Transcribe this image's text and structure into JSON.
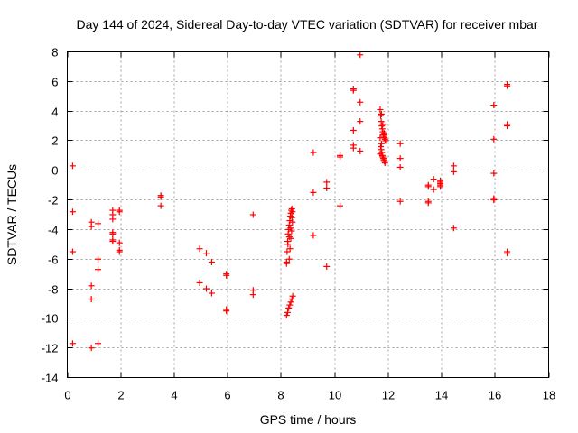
{
  "chart_data": {
    "type": "scatter",
    "title": "Day 144 of 2024, Sidereal Day-to-day VTEC variation (SDTVAR) for receiver mbar",
    "xlabel": "GPS time / hours",
    "ylabel": "SDTVAR / TECUs",
    "xlim": [
      0,
      18
    ],
    "ylim": [
      -14,
      8
    ],
    "xticks": [
      0,
      2,
      4,
      6,
      8,
      10,
      12,
      14,
      16,
      18
    ],
    "yticks": [
      -14,
      -12,
      -10,
      -8,
      -6,
      -4,
      -2,
      0,
      2,
      4,
      6,
      8
    ],
    "grid": true,
    "marker": "+",
    "color": "#ff0000",
    "series": [
      {
        "name": "SDTVAR",
        "points": [
          [
            0.2,
            0.3
          ],
          [
            0.2,
            -2.8
          ],
          [
            0.2,
            -5.5
          ],
          [
            0.2,
            -11.7
          ],
          [
            0.9,
            -3.5
          ],
          [
            0.9,
            -3.8
          ],
          [
            0.9,
            -7.8
          ],
          [
            0.9,
            -8.7
          ],
          [
            0.9,
            -12.0
          ],
          [
            1.15,
            -3.6
          ],
          [
            1.15,
            -6.0
          ],
          [
            1.15,
            -6.7
          ],
          [
            1.15,
            -11.7
          ],
          [
            1.7,
            -2.7
          ],
          [
            1.7,
            -3.0
          ],
          [
            1.7,
            -3.3
          ],
          [
            1.7,
            -4.2
          ],
          [
            1.7,
            -4.3
          ],
          [
            1.7,
            -4.7
          ],
          [
            1.7,
            -4.8
          ],
          [
            1.95,
            -2.7
          ],
          [
            1.95,
            -2.8
          ],
          [
            1.95,
            -4.9
          ],
          [
            1.95,
            -5.4
          ],
          [
            1.95,
            -5.5
          ],
          [
            3.5,
            -1.7
          ],
          [
            3.5,
            -1.8
          ],
          [
            3.5,
            -2.4
          ],
          [
            4.95,
            -5.3
          ],
          [
            4.95,
            -7.6
          ],
          [
            5.2,
            -5.6
          ],
          [
            5.2,
            -8.0
          ],
          [
            5.4,
            -6.2
          ],
          [
            5.4,
            -8.3
          ],
          [
            5.95,
            -7.0
          ],
          [
            5.95,
            -7.1
          ],
          [
            5.95,
            -9.4
          ],
          [
            5.95,
            -9.5
          ],
          [
            6.95,
            -3.0
          ],
          [
            6.95,
            -8.1
          ],
          [
            6.95,
            -8.4
          ],
          [
            8.2,
            -6.2
          ],
          [
            8.22,
            -5.5
          ],
          [
            8.24,
            -4.8
          ],
          [
            8.26,
            -4.3
          ],
          [
            8.28,
            -4.0
          ],
          [
            8.3,
            -3.7
          ],
          [
            8.32,
            -3.4
          ],
          [
            8.34,
            -3.1
          ],
          [
            8.36,
            -2.9
          ],
          [
            8.38,
            -2.7
          ],
          [
            8.4,
            -2.6
          ],
          [
            8.2,
            -6.3
          ],
          [
            8.25,
            -5.0
          ],
          [
            8.3,
            -4.5
          ],
          [
            8.35,
            -3.9
          ],
          [
            8.4,
            -3.2
          ],
          [
            8.42,
            -2.8
          ],
          [
            8.3,
            -6.0
          ],
          [
            8.33,
            -5.3
          ],
          [
            8.36,
            -4.6
          ],
          [
            8.39,
            -4.1
          ],
          [
            8.42,
            -3.5
          ],
          [
            8.2,
            -9.8
          ],
          [
            8.24,
            -9.6
          ],
          [
            8.28,
            -9.3
          ],
          [
            8.32,
            -9.1
          ],
          [
            8.36,
            -8.9
          ],
          [
            8.4,
            -8.7
          ],
          [
            8.43,
            -8.5
          ],
          [
            9.2,
            1.2
          ],
          [
            9.2,
            -1.5
          ],
          [
            9.2,
            -4.4
          ],
          [
            9.7,
            -0.8
          ],
          [
            9.7,
            -1.2
          ],
          [
            9.7,
            -6.5
          ],
          [
            10.2,
            0.9
          ],
          [
            10.2,
            1.0
          ],
          [
            10.2,
            -2.4
          ],
          [
            10.7,
            5.4
          ],
          [
            10.7,
            5.5
          ],
          [
            10.7,
            2.7
          ],
          [
            10.7,
            1.7
          ],
          [
            10.7,
            1.5
          ],
          [
            10.95,
            7.8
          ],
          [
            10.95,
            4.6
          ],
          [
            10.95,
            3.3
          ],
          [
            10.95,
            1.3
          ],
          [
            11.7,
            4.1
          ],
          [
            11.72,
            3.7
          ],
          [
            11.74,
            3.3
          ],
          [
            11.76,
            3.0
          ],
          [
            11.78,
            2.8
          ],
          [
            11.8,
            2.6
          ],
          [
            11.82,
            2.4
          ],
          [
            11.84,
            2.3
          ],
          [
            11.86,
            2.2
          ],
          [
            11.88,
            2.1
          ],
          [
            11.7,
            2.2
          ],
          [
            11.72,
            1.6
          ],
          [
            11.74,
            1.4
          ],
          [
            11.76,
            1.2
          ],
          [
            11.78,
            1.0
          ],
          [
            11.8,
            0.9
          ],
          [
            11.82,
            0.8
          ],
          [
            11.84,
            0.7
          ],
          [
            11.86,
            0.6
          ],
          [
            11.88,
            0.5
          ],
          [
            11.75,
            3.8
          ],
          [
            11.8,
            3.1
          ],
          [
            11.85,
            2.5
          ],
          [
            11.9,
            2.0
          ],
          [
            11.7,
            1.1
          ],
          [
            11.75,
            1.8
          ],
          [
            12.45,
            1.8
          ],
          [
            12.45,
            0.8
          ],
          [
            12.45,
            0.2
          ],
          [
            12.45,
            -2.1
          ],
          [
            13.5,
            -1.0
          ],
          [
            13.5,
            -1.1
          ],
          [
            13.5,
            -2.1
          ],
          [
            13.5,
            -2.2
          ],
          [
            13.7,
            -0.6
          ],
          [
            13.7,
            -1.3
          ],
          [
            13.95,
            -0.7
          ],
          [
            13.95,
            -0.8
          ],
          [
            13.95,
            -0.9
          ],
          [
            13.95,
            -1.0
          ],
          [
            13.95,
            -1.1
          ],
          [
            14.45,
            0.3
          ],
          [
            14.45,
            -0.1
          ],
          [
            14.45,
            -3.9
          ],
          [
            15.95,
            4.4
          ],
          [
            15.95,
            2.1
          ],
          [
            15.95,
            -0.2
          ],
          [
            15.95,
            -1.9
          ],
          [
            15.95,
            -2.0
          ],
          [
            16.45,
            5.7
          ],
          [
            16.45,
            5.8
          ],
          [
            16.45,
            3.0
          ],
          [
            16.45,
            3.1
          ],
          [
            16.45,
            -5.5
          ],
          [
            16.45,
            -5.6
          ]
        ]
      }
    ]
  }
}
